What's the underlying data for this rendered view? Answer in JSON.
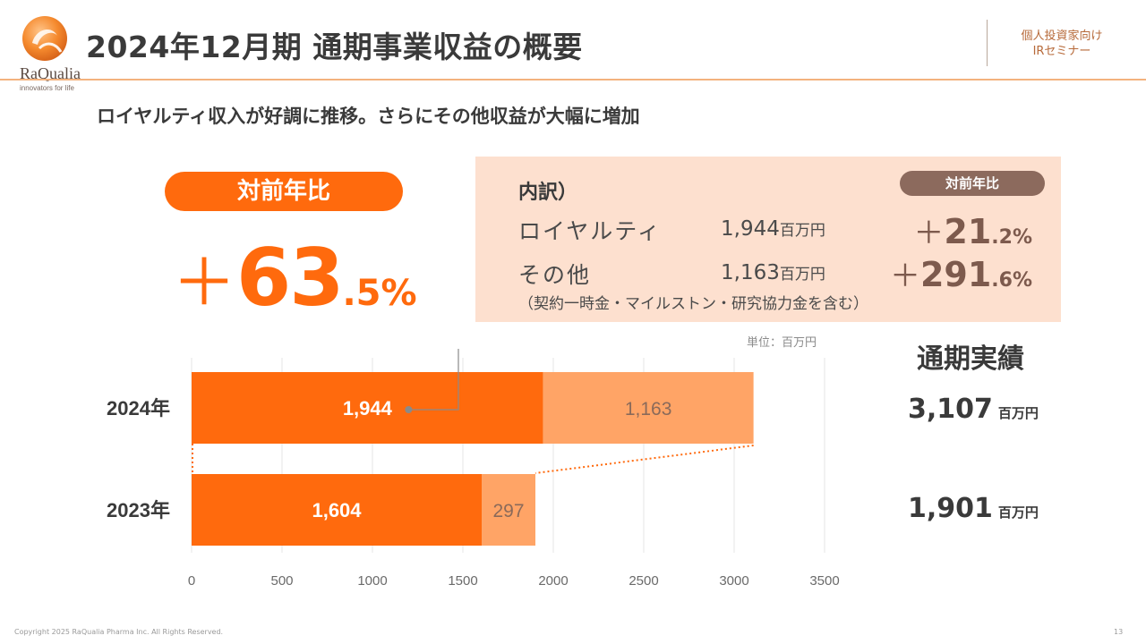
{
  "header": {
    "title": "2024年12月期 通期事業収益の概要",
    "logo_text": "RaQualia",
    "logo_tagline": "innovators for life",
    "tag_line1": "個人投資家向け",
    "tag_line2": "IRセミナー"
  },
  "subtitle": "ロイヤルティ収入が好調に推移。さらにその他収益が大幅に増加",
  "yoy": {
    "label": "対前年比",
    "sign": "＋",
    "int": "63",
    "dec": ".5%"
  },
  "breakdown": {
    "title": "内訳）",
    "pill": "対前年比",
    "rows": [
      {
        "label": "ロイヤルティ",
        "value": "1,944",
        "unit": "百万円",
        "sign": "＋",
        "pct_int": "21",
        "pct_dec": ".2%"
      },
      {
        "label": "その他",
        "value": "1,163",
        "unit": "百万円",
        "sign": "＋",
        "pct_int": "291",
        "pct_dec": ".6%"
      }
    ],
    "note": "（契約一時金・マイルストン・研究協力金を含む）"
  },
  "unit_label": "単位：百万円",
  "totals": {
    "title": "通期実績",
    "items": [
      {
        "value": "3,107",
        "unit": "百万円"
      },
      {
        "value": "1,901",
        "unit": "百万円"
      }
    ]
  },
  "colors": {
    "royalty": "#ff6a0d",
    "other": "#ffa466",
    "accent": "#ff6a0d",
    "pill_brown": "#8c6a5d"
  },
  "chart_data": {
    "type": "bar",
    "orientation": "horizontal",
    "stacked": true,
    "categories": [
      "2024年",
      "2023年"
    ],
    "series": [
      {
        "name": "ロイヤルティ",
        "values": [
          1944,
          1604
        ]
      },
      {
        "name": "その他",
        "values": [
          1163,
          297
        ]
      }
    ],
    "data_labels": [
      [
        "1,944",
        "1,163"
      ],
      [
        "1,604",
        "297"
      ]
    ],
    "xlim": [
      0,
      3500
    ],
    "xticks": [
      0,
      500,
      1000,
      1500,
      2000,
      2500,
      3000,
      3500
    ],
    "grid": true
  },
  "footer": {
    "copyright": "Copyright 2025 RaQualia Pharma Inc. All Rights Reserved.",
    "page": "13"
  }
}
